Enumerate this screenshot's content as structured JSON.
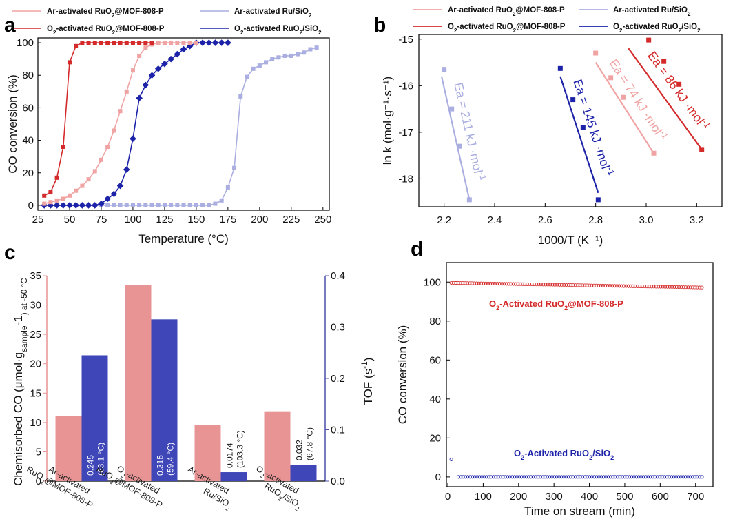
{
  "colors": {
    "ar_mof": "#f0a3a3",
    "o2_mof": "#d42a2a",
    "ar_ru": "#aaaee0",
    "o2_ru": "#1c23a8",
    "bar_pink": "#e89494",
    "bar_blue": "#3f46b8",
    "tof_axis": "#4a4fa8",
    "chem_axis": "#e89494"
  },
  "chart_data": [
    {
      "panel": "a",
      "type": "line",
      "xlabel": "Temperature (°C)",
      "ylabel": "CO conversion (%)",
      "xlim": [
        25,
        255
      ],
      "ylim": [
        -3,
        103
      ],
      "xticks": [
        "25",
        "50",
        "75",
        "100",
        "125",
        "150",
        "175",
        "200",
        "225",
        "250"
      ],
      "yticks": [
        "0",
        "20",
        "40",
        "60",
        "80",
        "100"
      ],
      "legend": [
        {
          "name": "Ar-activated RuO₂@MOF-808-P",
          "sub_parts": [
            "Ar-activated RuO",
            "2",
            "@MOF-808-P"
          ],
          "color_key": "ar_mof",
          "marker": "square"
        },
        {
          "name": "O₂-activated RuO₂@MOF-808-P",
          "sub_parts": [
            "O",
            "2",
            "-activated RuO",
            "2",
            "@MOF-808-P"
          ],
          "color_key": "o2_mof",
          "marker": "square"
        },
        {
          "name": "Ar-activated Ru/SiO₂",
          "sub_parts": [
            "Ar-activated Ru/SiO",
            "2"
          ],
          "color_key": "ar_ru",
          "marker": "square"
        },
        {
          "name": "O₂-activated RuO₂/SiO₂",
          "sub_parts": [
            "O",
            "2",
            "-activated RuO",
            "2",
            "/SiO",
            "2"
          ],
          "color_key": "o2_ru",
          "marker": "diamond"
        }
      ],
      "series": [
        {
          "name": "Ar-activated RuO₂@MOF-808-P",
          "color_key": "ar_mof",
          "marker": "square",
          "x": [
            30,
            35,
            40,
            45,
            50,
            55,
            60,
            65,
            70,
            75,
            80,
            85,
            90,
            95,
            100,
            105,
            110,
            115,
            120,
            125,
            130,
            135,
            140,
            145,
            150
          ],
          "y": [
            1,
            2,
            3,
            4,
            6,
            9,
            12,
            16,
            21,
            28,
            36,
            46,
            58,
            70,
            83,
            92,
            97,
            99,
            100,
            100,
            100,
            100,
            100,
            100,
            100
          ]
        },
        {
          "name": "O₂-activated RuO₂@MOF-808-P",
          "color_key": "o2_mof",
          "marker": "square",
          "x": [
            30,
            35,
            40,
            45,
            50,
            55,
            60,
            65,
            70,
            75,
            80,
            85,
            90,
            95,
            100,
            105,
            110,
            115
          ],
          "y": [
            6,
            8,
            17,
            36,
            88,
            98,
            100,
            100,
            100,
            100,
            100,
            100,
            100,
            100,
            100,
            100,
            100,
            100
          ]
        },
        {
          "name": "Ar-activated Ru/SiO₂",
          "color_key": "ar_ru",
          "marker": "square",
          "x": [
            30,
            35,
            40,
            45,
            50,
            55,
            60,
            65,
            70,
            75,
            80,
            85,
            90,
            95,
            100,
            105,
            110,
            115,
            120,
            125,
            130,
            135,
            140,
            145,
            150,
            155,
            160,
            165,
            170,
            175,
            180,
            185,
            190,
            195,
            200,
            205,
            210,
            215,
            220,
            225,
            230,
            235,
            240,
            245
          ],
          "y": [
            0,
            0,
            0,
            0,
            0,
            0,
            0,
            0,
            0,
            0,
            0,
            0,
            0,
            0,
            0,
            0,
            0,
            0,
            0,
            0,
            0,
            0,
            0,
            0,
            0,
            0,
            0,
            1,
            3,
            11,
            23,
            67,
            79,
            84,
            86,
            88,
            90,
            91,
            92,
            92,
            93,
            94,
            96,
            97
          ]
        },
        {
          "name": "O₂-activated RuO₂/SiO₂",
          "color_key": "o2_ru",
          "marker": "diamond",
          "x": [
            30,
            35,
            40,
            45,
            50,
            55,
            60,
            65,
            70,
            75,
            80,
            85,
            90,
            95,
            100,
            105,
            110,
            115,
            120,
            125,
            130,
            135,
            140,
            145,
            150,
            155,
            160,
            165,
            170,
            175
          ],
          "y": [
            0,
            0,
            0,
            0,
            0,
            0,
            0,
            0,
            0,
            1,
            4,
            7,
            12,
            22,
            41,
            66,
            74,
            80,
            84,
            87,
            90,
            93,
            96,
            98,
            100,
            100,
            100,
            100,
            100,
            100
          ]
        }
      ]
    },
    {
      "panel": "b",
      "type": "scatter",
      "xlabel": "1000/T (K⁻¹)",
      "ylabel": "ln k (mol·g⁻¹·s⁻¹)",
      "xlim": [
        2.1,
        3.3
      ],
      "ylim": [
        -18.6,
        -14.9
      ],
      "xticks": [
        "2.2",
        "2.4",
        "2.6",
        "2.8",
        "3.0",
        "3.2"
      ],
      "yticks": [
        "-15",
        "-16",
        "-17",
        "-18"
      ],
      "legend": [
        {
          "name": "Ar-activated RuO₂@MOF-808-P",
          "sub_parts": [
            "Ar-activated RuO",
            "2",
            "@MOF-808-P"
          ],
          "color_key": "ar_mof"
        },
        {
          "name": "O₂-activated RuO₂@MOF-808-P",
          "sub_parts": [
            "O",
            "2",
            "-activated RuO",
            "2",
            "@MOF-808-P"
          ],
          "color_key": "o2_mof"
        },
        {
          "name": "Ar-activated Ru/SiO₂",
          "sub_parts": [
            "Ar-activated Ru/SiO",
            "2"
          ],
          "color_key": "ar_ru"
        },
        {
          "name": "O₂-activated RuO₂/SiO₂",
          "sub_parts": [
            "O",
            "2",
            "-activated RuO",
            "2",
            "/SiO",
            "2"
          ],
          "color_key": "o2_ru"
        }
      ],
      "series": [
        {
          "name": "Ar-activated Ru/SiO₂",
          "color_key": "ar_ru",
          "x": [
            2.2,
            2.23,
            2.26,
            2.3
          ],
          "y": [
            -15.65,
            -16.5,
            -17.3,
            -18.45
          ],
          "fit": {
            "x": [
              2.19,
              2.3
            ],
            "y": [
              -15.8,
              -18.45
            ]
          },
          "ea_label": "Ea = 211 kJ ·mol⁻¹",
          "ea_parts": [
            "Ea = 211 kJ ·mol",
            "-1"
          ]
        },
        {
          "name": "O₂-activated RuO₂/SiO₂",
          "color_key": "o2_ru",
          "x": [
            2.66,
            2.71,
            2.75,
            2.81
          ],
          "y": [
            -15.63,
            -16.3,
            -16.9,
            -18.45
          ],
          "fit": {
            "x": [
              2.66,
              2.81
            ],
            "y": [
              -15.8,
              -18.3
            ]
          },
          "ea_label": "Ea = 145 kJ ·mol⁻¹",
          "ea_parts": [
            "Ea = 145 kJ ·mol",
            "-1"
          ]
        },
        {
          "name": "Ar-activated RuO₂@MOF-808-P",
          "color_key": "ar_mof",
          "x": [
            2.8,
            2.86,
            2.91,
            3.03
          ],
          "y": [
            -15.3,
            -15.83,
            -16.25,
            -17.45
          ],
          "fit": {
            "x": [
              2.8,
              3.03
            ],
            "y": [
              -15.5,
              -17.45
            ]
          },
          "ea_label": "Ea = 74 kJ ·mol⁻¹",
          "ea_parts": [
            "Ea = 74 kJ ·mol",
            "-1"
          ]
        },
        {
          "name": "O₂-activated RuO₂@MOF-808-P",
          "color_key": "o2_mof",
          "x": [
            3.01,
            3.07,
            3.13,
            3.22
          ],
          "y": [
            -15.02,
            -15.48,
            -15.97,
            -17.37
          ],
          "fit": {
            "x": [
              2.93,
              3.22
            ],
            "y": [
              -15.2,
              -17.37
            ]
          },
          "ea_label": "Ea = 86 kJ ·mol⁻¹",
          "ea_parts": [
            "Ea = 86 kJ ·mol",
            "-1"
          ]
        }
      ]
    },
    {
      "panel": "c",
      "type": "bar",
      "ylabel_left": "Chemisorbed CO (μmol·g_sample⁻¹) at -50 °C",
      "ylabel_left_parts": [
        "Chemisorbed CO (μmol·g",
        "sample",
        "-1",
        ") at -50 °C"
      ],
      "ylabel_right": "TOF (s⁻¹)",
      "ylabel_right_parts": [
        "TOF (s",
        "-1",
        ")"
      ],
      "ylim_left": [
        0,
        35
      ],
      "ylim_right": [
        0,
        0.4
      ],
      "yticks_left": [
        "0",
        "5",
        "10",
        "15",
        "20",
        "25",
        "30",
        "35"
      ],
      "yticks_right": [
        "0.0",
        "0.1",
        "0.2",
        "0.3",
        "0.4"
      ],
      "categories": [
        {
          "line1": "Ar-activated",
          "line2_parts": [
            "RuO",
            "2",
            "@MOF-808-P"
          ]
        },
        {
          "line1_parts": [
            "O",
            "2",
            "-activated"
          ],
          "line2_parts": [
            "RuO",
            "2",
            "@MOF-808-P"
          ]
        },
        {
          "line1": "Ar-activated",
          "line2_parts": [
            "Ru/SiO",
            "2"
          ]
        },
        {
          "line1_parts": [
            "O",
            "2",
            "-activated"
          ],
          "line2_parts": [
            "RuO",
            "2",
            "/SiO",
            "2"
          ]
        }
      ],
      "category_names": [
        "Ar-activated RuO₂@MOF-808-P",
        "O₂-activated RuO₂@MOF-808-P",
        "Ar-activated Ru/SiO₂",
        "O₂-activated RuO₂/SiO₂"
      ],
      "series": [
        {
          "name": "Chemisorbed CO",
          "axis": "left",
          "color_key": "bar_pink",
          "values": [
            11.1,
            33.4,
            9.6,
            11.9
          ]
        },
        {
          "name": "TOF",
          "axis": "right",
          "color_key": "bar_blue",
          "values": [
            0.245,
            0.315,
            0.0174,
            0.032
          ]
        }
      ],
      "bar_labels": [
        {
          "value": "0.245",
          "temp": "(63.1 °C)"
        },
        {
          "value": "0.315",
          "temp": "(59.4 °C)"
        },
        {
          "value": "0.0174",
          "temp": "(103.3 °C)"
        },
        {
          "value": "0.032",
          "temp": "(67.8 °C)"
        }
      ]
    },
    {
      "panel": "d",
      "type": "scatter",
      "xlabel": "Time on stream (min)",
      "ylabel": "CO conversion (%)",
      "xlim": [
        0,
        720
      ],
      "ylim": [
        -5,
        110
      ],
      "xticks": [
        "0",
        "100",
        "200",
        "300",
        "400",
        "500",
        "600",
        "700"
      ],
      "yticks": [
        "0",
        "20",
        "40",
        "60",
        "80",
        "100"
      ],
      "series": [
        {
          "name": "O₂-Activated RuO₂@MOF-808-P",
          "label_parts": [
            "O",
            "2",
            "-Activated RuO",
            "2",
            "@MOF-808-P"
          ],
          "color_key": "o2_mof",
          "x_start": 10,
          "x_end": 718,
          "count": 110,
          "y_start": 99.6,
          "y_end": 97.2
        },
        {
          "name": "O₂-Activated RuO₂/SiO₂",
          "label_parts": [
            "O",
            "2",
            "-Activated RuO",
            "2",
            "/SiO",
            "2"
          ],
          "color_key": "o2_ru",
          "x_start": 30,
          "x_end": 718,
          "count": 105,
          "y_start": 0,
          "y_end": 0,
          "extra_points": [
            {
              "x": 10,
              "y": 9
            }
          ]
        }
      ]
    }
  ],
  "panel_letters": [
    "a",
    "b",
    "c",
    "d"
  ]
}
